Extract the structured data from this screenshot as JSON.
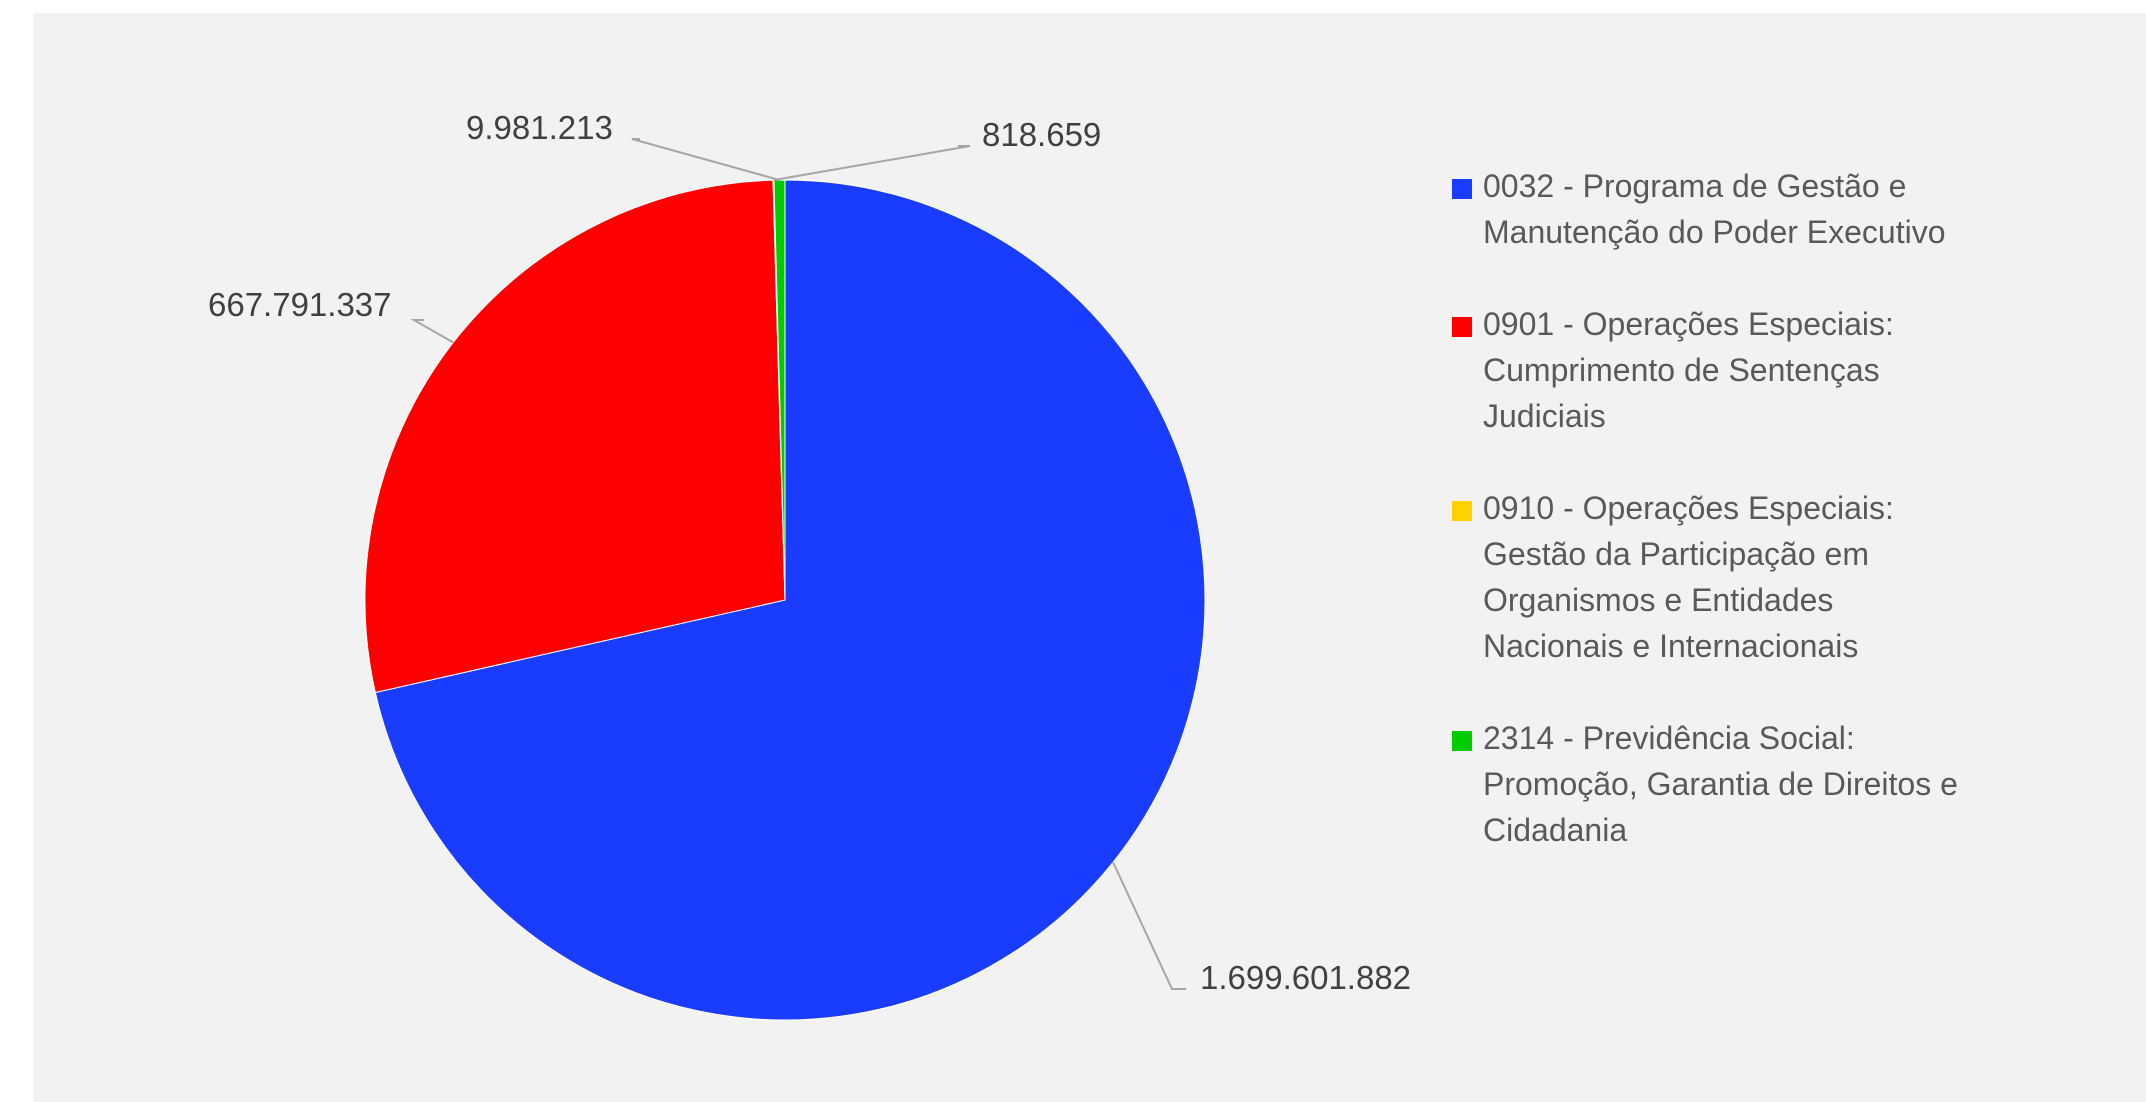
{
  "chart_data": {
    "type": "pie",
    "title": "",
    "categories": [
      "0032 - Programa de Gestão e Manutenção do Poder Executivo",
      "0901 - Operações Especiais: Cumprimento de Sentenças Judiciais",
      "0910 - Operações Especiais: Gestão da Participação em Organismos e Entidades Nacionais e Internacionais",
      "2314 - Previdência Social: Promoção, Garantia de Direitos e Cidadania"
    ],
    "values": [
      1699601882,
      667791337,
      818659,
      9981213
    ],
    "value_labels": [
      "1.699.601.882",
      "667.791.337",
      "818.659",
      "9.981.213"
    ],
    "colors": [
      "#1a3cff",
      "#ff0000",
      "#ffd200",
      "#00cc00"
    ],
    "legend_position": "right"
  },
  "legend": {
    "items": [
      {
        "line1": "0032 - Programa de Gestão e",
        "line2": "Manutenção do Poder Executivo",
        "line3": "",
        "line4": "",
        "color": "#1a3cff"
      },
      {
        "line1": "0901 - Operações Especiais:",
        "line2": "Cumprimento de Sentenças",
        "line3": "Judiciais",
        "line4": "",
        "color": "#ff0000"
      },
      {
        "line1": "0910 - Operações Especiais:",
        "line2": "Gestão da Participação em",
        "line3": "Organismos e Entidades",
        "line4": "Nacionais e Internacionais",
        "color": "#ffd200"
      },
      {
        "line1": "2314 - Previdência Social:",
        "line2": "Promoção, Garantia de Direitos e",
        "line3": "Cidadania",
        "line4": "",
        "color": "#00cc00"
      }
    ]
  }
}
